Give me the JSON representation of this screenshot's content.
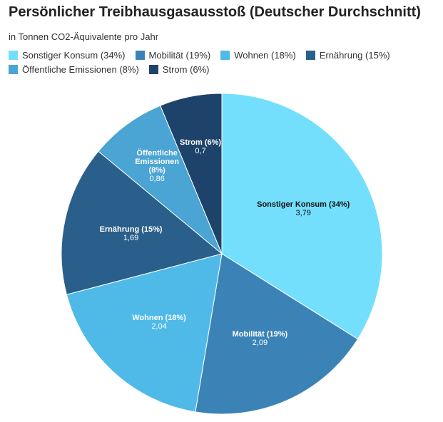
{
  "chart_data": {
    "type": "pie",
    "title": "Persönlicher Treibhausgasausstoß (Deutscher Durchschnitt)",
    "subtitle": "in Tonnen CO2-Äquivalente pro Jahr",
    "categories": [
      "Sonstiger Konsum (34%)",
      "Mobilität (19%)",
      "Wohnen (18%)",
      "Ernährung (15%)",
      "Öffentliche Emissionen (8%)",
      "Strom (6%)"
    ],
    "values": [
      3.79,
      2.09,
      2.04,
      1.69,
      0.86,
      0.7
    ],
    "value_labels": [
      "3,79",
      "2,09",
      "2,04",
      "1,69",
      "0,86",
      "0,7"
    ],
    "colors": [
      "#74dffc",
      "#3b83b6",
      "#4fbae8",
      "#2b5f8b",
      "#4aa4d4",
      "#1e436a"
    ]
  }
}
